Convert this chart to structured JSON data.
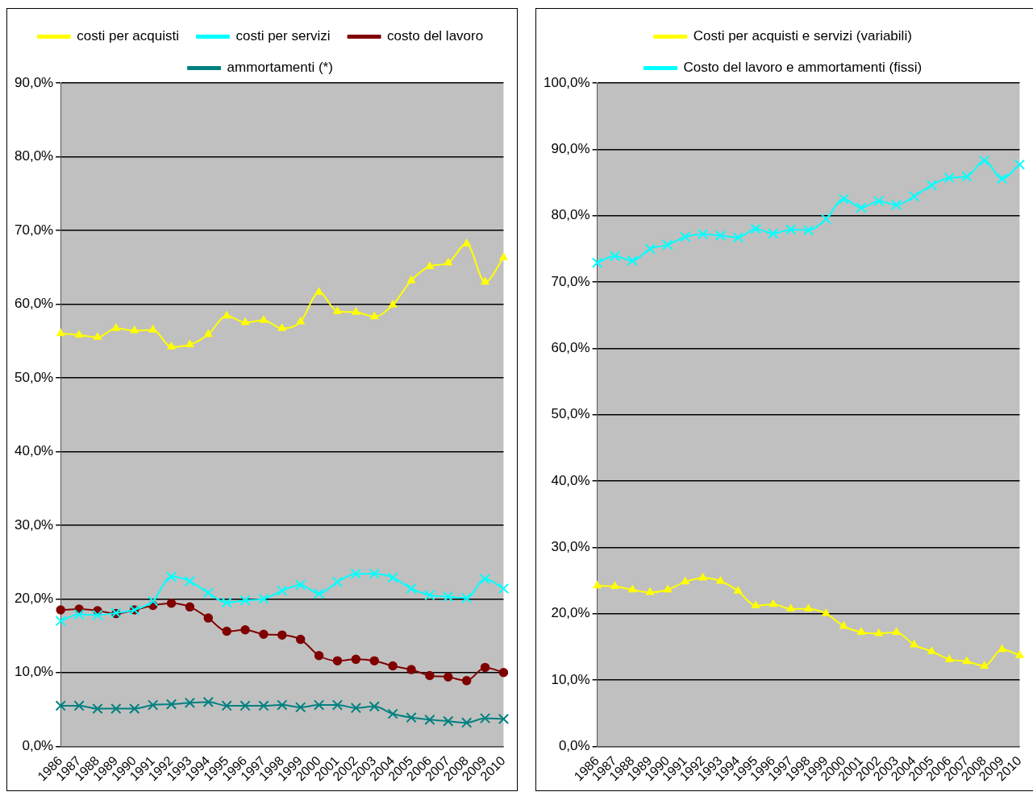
{
  "chart_data": [
    {
      "type": "line",
      "categories": [
        "1986",
        "1987",
        "1988",
        "1989",
        "1990",
        "1991",
        "1992",
        "1993",
        "1994",
        "1995",
        "1996",
        "1997",
        "1998",
        "1999",
        "2000",
        "2001",
        "2002",
        "2003",
        "2004",
        "2005",
        "2006",
        "2007",
        "2008",
        "2009",
        "2010"
      ],
      "series": [
        {
          "name": "costi per acquisti",
          "color": "#ffff00",
          "marker": "triangle",
          "values": [
            56.0,
            55.8,
            55.5,
            56.7,
            56.4,
            56.5,
            54.2,
            54.5,
            55.9,
            58.4,
            57.5,
            57.8,
            56.7,
            57.6,
            61.6,
            59.0,
            58.9,
            58.3,
            59.9,
            63.2,
            65.1,
            65.6,
            68.2,
            63.0,
            66.3
          ]
        },
        {
          "name": "costi per servizi",
          "color": "#00ffff",
          "marker": "cross",
          "values": [
            17.0,
            17.9,
            17.8,
            18.1,
            18.5,
            19.7,
            23.0,
            22.4,
            20.8,
            19.5,
            19.8,
            20.0,
            21.1,
            21.9,
            20.7,
            22.3,
            23.4,
            23.4,
            22.9,
            21.4,
            20.5,
            20.3,
            20.1,
            22.7,
            21.4
          ]
        },
        {
          "name": "costo del lavoro",
          "color": "#800000",
          "marker": "circle",
          "values": [
            18.5,
            18.6,
            18.4,
            18.0,
            18.5,
            19.1,
            19.4,
            18.9,
            17.4,
            15.6,
            15.8,
            15.2,
            15.1,
            14.5,
            12.3,
            11.6,
            11.8,
            11.6,
            10.9,
            10.4,
            9.6,
            9.4,
            8.9,
            10.7,
            10.0
          ]
        },
        {
          "name": "ammortamenti (*)",
          "color": "#008080",
          "marker": "cross",
          "values": [
            5.5,
            5.5,
            5.1,
            5.1,
            5.1,
            5.6,
            5.7,
            5.9,
            6.0,
            5.5,
            5.5,
            5.5,
            5.6,
            5.3,
            5.6,
            5.6,
            5.2,
            5.4,
            4.4,
            3.9,
            3.6,
            3.4,
            3.2,
            3.8,
            3.7
          ]
        }
      ],
      "ylim": [
        0,
        90
      ],
      "yticks": [
        {
          "value": 0,
          "label": "0,0%"
        },
        {
          "value": 10,
          "label": "10,0%"
        },
        {
          "value": 20,
          "label": "20,0%"
        },
        {
          "value": 30,
          "label": "30,0%"
        },
        {
          "value": 40,
          "label": "40,0%"
        },
        {
          "value": 50,
          "label": "50,0%"
        },
        {
          "value": 60,
          "label": "60,0%"
        },
        {
          "value": 70,
          "label": "70,0%"
        },
        {
          "value": 80,
          "label": "80,0%"
        },
        {
          "value": 90,
          "label": "90,0%"
        }
      ],
      "grid": "y",
      "legend": "top"
    },
    {
      "type": "line",
      "categories": [
        "1986",
        "1987",
        "1988",
        "1989",
        "1990",
        "1991",
        "1992",
        "1993",
        "1994",
        "1995",
        "1996",
        "1997",
        "1998",
        "1999",
        "2000",
        "2001",
        "2002",
        "2003",
        "2004",
        "2005",
        "2006",
        "2007",
        "2008",
        "2009",
        "2010"
      ],
      "series": [
        {
          "name": "Costi per acquisti e servizi (variabili)",
          "color": "#ffff00",
          "marker": "triangle",
          "values": [
            24.2,
            24.1,
            23.6,
            23.2,
            23.6,
            24.8,
            25.4,
            24.9,
            23.4,
            21.2,
            21.4,
            20.7,
            20.7,
            20.0,
            18.1,
            17.2,
            17.0,
            17.2,
            15.3,
            14.3,
            13.1,
            12.8,
            12.1,
            14.6,
            13.7
          ]
        },
        {
          "name": "Costo del lavoro e ammortamenti (fissi)",
          "color": "#00ffff",
          "marker": "cross",
          "values": [
            72.9,
            73.9,
            73.2,
            75.0,
            75.6,
            76.8,
            77.2,
            77.0,
            76.7,
            78.0,
            77.3,
            77.9,
            77.8,
            79.5,
            82.5,
            81.2,
            82.2,
            81.6,
            82.9,
            84.6,
            85.7,
            85.9,
            88.3,
            85.6,
            87.7
          ]
        }
      ],
      "ylim": [
        0,
        100
      ],
      "yticks": [
        {
          "value": 0,
          "label": "0,0%"
        },
        {
          "value": 10,
          "label": "10,0%"
        },
        {
          "value": 20,
          "label": "20,0%"
        },
        {
          "value": 30,
          "label": "30,0%"
        },
        {
          "value": 40,
          "label": "40,0%"
        },
        {
          "value": 50,
          "label": "50,0%"
        },
        {
          "value": 60,
          "label": "60,0%"
        },
        {
          "value": 70,
          "label": "70,0%"
        },
        {
          "value": 80,
          "label": "80,0%"
        },
        {
          "value": 90,
          "label": "90,0%"
        },
        {
          "value": 100,
          "label": "100,0%"
        }
      ],
      "grid": "y",
      "legend": "top"
    }
  ]
}
